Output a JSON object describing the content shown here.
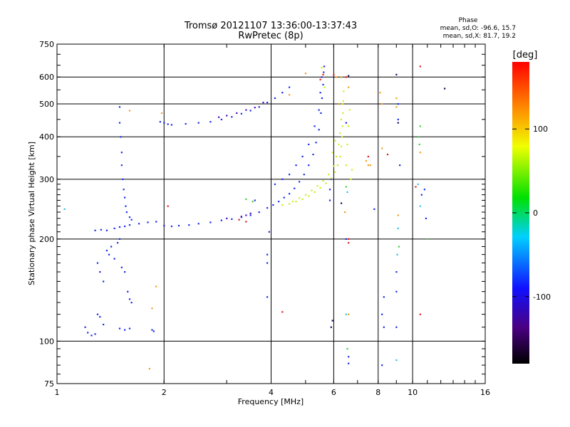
{
  "chart_data": {
    "type": "scatter",
    "title": "Tromsø 20121107 13:36:00-13:37:43",
    "subtitle": "RwPretec (8p)",
    "xlabel": "Frequency [MHz]",
    "ylabel": "Stationary phase Virtual Height [km]",
    "x_scale": "log",
    "y_scale": "log",
    "xlim": [
      1,
      16
    ],
    "ylim": [
      75,
      750
    ],
    "grid": true,
    "x_ticks": [
      "1",
      "2",
      "4",
      "6",
      "8",
      "10",
      "16"
    ],
    "y_ticks": [
      "75",
      "100",
      "200",
      "300",
      "400",
      "500",
      "600",
      "750"
    ],
    "phase_info": {
      "heading": "Phase",
      "line_o": "mean, sd,O: -96.6, 15.7",
      "line_x": "mean, sd,X:  81.7, 19.2"
    },
    "colorbar": {
      "label": "[deg]",
      "range": [
        -180,
        180
      ],
      "ticks": [
        "100",
        "0",
        "-100"
      ]
    },
    "series": [
      {
        "points": [
          [
            1.28,
            212
          ],
          [
            1.33,
            213
          ],
          [
            1.38,
            212
          ],
          [
            1.45,
            215
          ],
          [
            1.5,
            217
          ],
          [
            1.55,
            218
          ],
          [
            1.6,
            220
          ],
          [
            1.7,
            222
          ],
          [
            1.8,
            224
          ],
          [
            1.9,
            225
          ],
          [
            2.0,
            219
          ],
          [
            2.1,
            218
          ],
          [
            2.2,
            219
          ],
          [
            2.35,
            220
          ],
          [
            2.5,
            222
          ],
          [
            2.7,
            224
          ],
          [
            2.9,
            227
          ],
          [
            3.1,
            229
          ],
          [
            3.3,
            232
          ],
          [
            3.5,
            235
          ],
          [
            3.7,
            240
          ],
          [
            3.9,
            247
          ],
          [
            4.05,
            252
          ],
          [
            4.2,
            258
          ],
          [
            4.35,
            265
          ],
          [
            4.5,
            272
          ],
          [
            4.65,
            282
          ],
          [
            4.8,
            295
          ],
          [
            4.95,
            310
          ],
          [
            5.1,
            330
          ],
          [
            5.25,
            355
          ],
          [
            5.35,
            385
          ],
          [
            5.45,
            420
          ],
          [
            5.52,
            470
          ],
          [
            5.56,
            520
          ],
          [
            5.6,
            570
          ],
          [
            5.62,
            620
          ],
          [
            5.64,
            645
          ],
          [
            4.1,
            290
          ],
          [
            4.3,
            300
          ],
          [
            4.5,
            310
          ],
          [
            4.7,
            330
          ],
          [
            4.9,
            350
          ],
          [
            5.1,
            380
          ],
          [
            5.3,
            430
          ],
          [
            5.45,
            480
          ],
          [
            5.5,
            540
          ],
          [
            5.55,
            600
          ],
          [
            1.5,
            490
          ],
          [
            1.5,
            440
          ],
          [
            1.51,
            400
          ],
          [
            1.52,
            360
          ],
          [
            1.52,
            330
          ],
          [
            1.53,
            300
          ],
          [
            1.54,
            280
          ],
          [
            1.55,
            265
          ],
          [
            1.56,
            250
          ],
          [
            1.57,
            240
          ],
          [
            1.6,
            232
          ],
          [
            1.62,
            228
          ],
          [
            1.95,
            443
          ],
          [
            2.0,
            440
          ],
          [
            2.05,
            436
          ],
          [
            2.1,
            434
          ],
          [
            2.3,
            437
          ],
          [
            2.5,
            440
          ],
          [
            2.7,
            443
          ],
          [
            2.9,
            450
          ],
          [
            3.1,
            458
          ],
          [
            3.3,
            468
          ],
          [
            3.5,
            478
          ],
          [
            3.7,
            490
          ],
          [
            3.9,
            505
          ],
          [
            4.1,
            520
          ],
          [
            4.3,
            540
          ],
          [
            4.5,
            560
          ],
          [
            1.3,
            170
          ],
          [
            1.32,
            160
          ],
          [
            1.35,
            150
          ],
          [
            1.38,
            185
          ],
          [
            1.4,
            180
          ],
          [
            1.42,
            190
          ],
          [
            1.45,
            175
          ],
          [
            1.48,
            195
          ],
          [
            1.5,
            200
          ],
          [
            1.52,
            165
          ],
          [
            1.55,
            160
          ],
          [
            1.58,
            140
          ],
          [
            1.6,
            133
          ],
          [
            1.62,
            130
          ],
          [
            1.2,
            110
          ],
          [
            1.22,
            106
          ],
          [
            1.25,
            104
          ],
          [
            1.28,
            105
          ],
          [
            1.3,
            120
          ],
          [
            1.32,
            118
          ],
          [
            1.35,
            112
          ],
          [
            1.5,
            109
          ],
          [
            1.55,
            108
          ],
          [
            1.6,
            109
          ],
          [
            1.85,
            108
          ],
          [
            1.87,
            107
          ],
          [
            5.85,
            280
          ],
          [
            5.9,
            300
          ],
          [
            5.85,
            260
          ],
          [
            6.5,
            440
          ],
          [
            6.5,
            200
          ],
          [
            7.8,
            245
          ],
          [
            8.3,
            135
          ],
          [
            8.2,
            120
          ],
          [
            8.3,
            110
          ],
          [
            8.2,
            85
          ],
          [
            9.0,
            160
          ],
          [
            9.0,
            140
          ],
          [
            9.0,
            110
          ],
          [
            9.2,
            330
          ],
          [
            9.1,
            450
          ],
          [
            9.1,
            500
          ],
          [
            10.8,
            280
          ],
          [
            10.6,
            270
          ],
          [
            10.9,
            230
          ],
          [
            6.6,
            90
          ],
          [
            6.6,
            86
          ],
          [
            3.6,
            260
          ],
          [
            3.9,
            180
          ],
          [
            3.9,
            170
          ],
          [
            3.9,
            135
          ],
          [
            3.95,
            210
          ]
        ],
        "color": "#1a2de8"
      },
      {
        "points": [
          [
            2.85,
            457
          ],
          [
            3.0,
            462
          ],
          [
            3.2,
            470
          ],
          [
            3.4,
            480
          ],
          [
            3.6,
            488
          ],
          [
            3.3,
            233
          ],
          [
            3.4,
            235
          ],
          [
            3.5,
            238
          ],
          [
            3.0,
            230
          ],
          [
            3.8,
            505
          ]
        ],
        "color": "#4a10c0"
      },
      {
        "points": [
          [
            4.3,
            252
          ],
          [
            4.5,
            254
          ],
          [
            4.7,
            258
          ],
          [
            4.9,
            262
          ],
          [
            5.1,
            268
          ],
          [
            5.3,
            275
          ],
          [
            5.5,
            283
          ],
          [
            5.7,
            292
          ],
          [
            5.9,
            302
          ],
          [
            6.05,
            315
          ],
          [
            6.15,
            330
          ],
          [
            6.25,
            350
          ],
          [
            6.3,
            375
          ],
          [
            6.33,
            400
          ],
          [
            6.35,
            430
          ],
          [
            6.37,
            470
          ],
          [
            6.38,
            510
          ],
          [
            6.4,
            545
          ],
          [
            4.6,
            258
          ],
          [
            4.8,
            264
          ],
          [
            5.0,
            270
          ],
          [
            5.2,
            278
          ],
          [
            5.4,
            287
          ],
          [
            5.6,
            297
          ],
          [
            5.8,
            310
          ],
          [
            6.0,
            328
          ],
          [
            6.1,
            350
          ],
          [
            6.2,
            380
          ],
          [
            6.25,
            410
          ],
          [
            6.3,
            450
          ],
          [
            6.35,
            500
          ],
          [
            6.5,
            330
          ],
          [
            6.55,
            380
          ],
          [
            6.6,
            430
          ],
          [
            6.65,
            480
          ],
          [
            6.7,
            300
          ],
          [
            6.75,
            320
          ],
          [
            5.55,
            640
          ],
          [
            5.6,
            610
          ],
          [
            5.65,
            560
          ],
          [
            6.05,
            390
          ],
          [
            5.95,
            360
          ]
        ],
        "color": "#c8f020"
      },
      {
        "points": [
          [
            10.4,
            400
          ],
          [
            10.5,
            430
          ],
          [
            10.45,
            380
          ],
          [
            11.0,
            200
          ],
          [
            3.4,
            262
          ],
          [
            3.55,
            258
          ],
          [
            6.55,
            95
          ],
          [
            9.15,
            190
          ],
          [
            6.5,
            285
          ]
        ],
        "color": "#40d040"
      },
      {
        "points": [
          [
            5.0,
            615
          ],
          [
            4.5,
            532
          ],
          [
            6.1,
            600
          ],
          [
            6.3,
            600
          ],
          [
            6.5,
            600
          ],
          [
            6.6,
            560
          ],
          [
            7.4,
            340
          ],
          [
            7.5,
            330
          ],
          [
            7.6,
            330
          ],
          [
            8.2,
            370
          ],
          [
            9.0,
            520
          ],
          [
            9.0,
            490
          ],
          [
            8.2,
            500
          ],
          [
            8.1,
            540
          ],
          [
            10.5,
            360
          ],
          [
            6.45,
            240
          ],
          [
            6.6,
            120
          ],
          [
            1.82,
            83
          ],
          [
            1.9,
            145
          ],
          [
            1.85,
            125
          ],
          [
            1.6,
            478
          ],
          [
            1.97,
            470
          ],
          [
            6.2,
            500
          ],
          [
            9.1,
            235
          ]
        ],
        "color": "#f0a020"
      },
      {
        "points": [
          [
            10.5,
            645
          ],
          [
            6.5,
            600
          ],
          [
            6.0,
            610
          ],
          [
            4.3,
            122
          ],
          [
            7.5,
            350
          ],
          [
            10.2,
            285
          ],
          [
            3.25,
            228
          ],
          [
            3.4,
            225
          ],
          [
            5.5,
            590
          ],
          [
            8.5,
            355
          ],
          [
            10.5,
            120
          ],
          [
            6.6,
            200
          ],
          [
            6.6,
            195
          ],
          [
            2.05,
            250
          ],
          [
            5.6,
            610
          ]
        ],
        "color": "#e02020"
      },
      {
        "points": [
          [
            9.0,
            610
          ],
          [
            12.3,
            555
          ],
          [
            6.6,
            605
          ],
          [
            6.3,
            255
          ],
          [
            9.1,
            440
          ],
          [
            5.95,
            115
          ],
          [
            5.9,
            110
          ]
        ],
        "color": "#101060"
      },
      {
        "points": [
          [
            6.55,
            275
          ],
          [
            6.5,
            120
          ],
          [
            9.05,
            180
          ],
          [
            9.0,
            88
          ],
          [
            10.35,
            290
          ],
          [
            10.5,
            250
          ],
          [
            9.1,
            215
          ],
          [
            1.05,
            245
          ]
        ],
        "color": "#30c0e0"
      }
    ]
  }
}
